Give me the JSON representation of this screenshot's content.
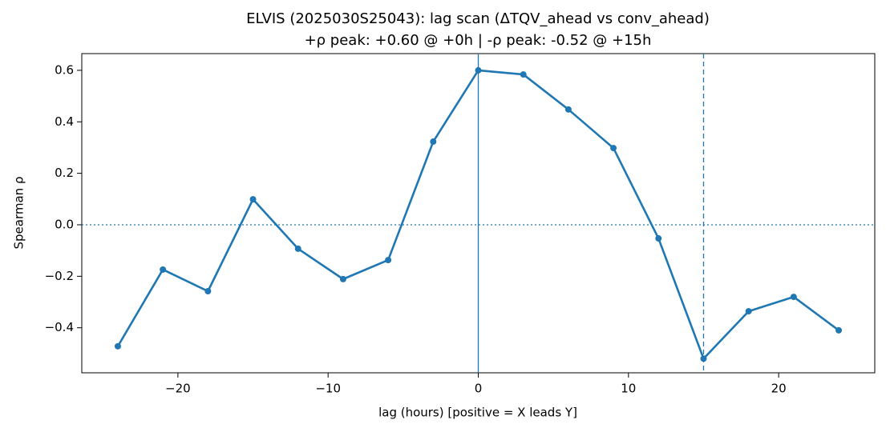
{
  "chart_data": {
    "type": "line",
    "title": "ELVIS (2025030S25043): lag scan (ΔTQV_ahead vs conv_ahead)",
    "subtitle": "+ρ peak: +0.60 @ +0h | -ρ peak: -0.52 @ +15h",
    "x_label": "lag (hours) [positive = X leads Y]",
    "y_label": "Spearman ρ",
    "x": [
      -24,
      -21,
      -18,
      -15,
      -12,
      -9,
      -6,
      -3,
      0,
      3,
      6,
      9,
      12,
      15,
      18,
      21,
      24
    ],
    "series": [
      {
        "color": "#1f77b4",
        "values": [
          -0.472,
          -0.174,
          -0.258,
          0.099,
          -0.093,
          -0.211,
          -0.137,
          0.323,
          0.6,
          0.584,
          0.448,
          0.298,
          -0.053,
          -0.52,
          -0.336,
          -0.28,
          -0.41
        ]
      }
    ],
    "xlim": [
      -26.4,
      26.4
    ],
    "ylim": [
      -0.575,
      0.665
    ],
    "xticks": [
      {
        "value": -20,
        "label": "−20"
      },
      {
        "value": -10,
        "label": "−10"
      },
      0,
      10,
      20
    ],
    "yticks": [
      {
        "value": -0.4,
        "label": "−0.4"
      },
      {
        "value": -0.2,
        "label": "−0.2"
      },
      {
        "value": 0,
        "label": "0.0"
      },
      0.2,
      0.4,
      0.6
    ],
    "hlines": [
      {
        "value": 0,
        "style": "dotted"
      }
    ],
    "vlines": [
      {
        "value": 0,
        "style": "solid"
      },
      {
        "value": 15,
        "style": "dashed"
      }
    ],
    "grid": false
  }
}
